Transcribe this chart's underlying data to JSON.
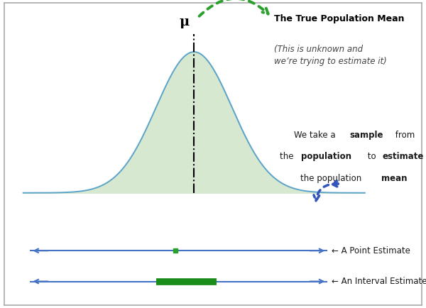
{
  "bg_color": "#ffffff",
  "border_color": "#aaaaaa",
  "bell_fill_color": "#d6e8d0",
  "bell_edge_color": "#5ba3c9",
  "bell_mean": 0.0,
  "bell_std": 1.0,
  "vline_x": 0.0,
  "mu_label": "μ",
  "title_text": "The True Population Mean",
  "subtitle_text": "(This is unknown and\nwe’re trying to estimate it)",
  "point_label": "← A Point Estimate",
  "interval_label": "← An Interval Estimate",
  "line_color": "#4472c4",
  "point_color": "#2ca02c",
  "interval_color": "#1a8c1a",
  "arrow_color_green": "#2ca02c",
  "arrow_color_blue": "#3355bb",
  "label_color": "#1a1a1a",
  "mu_color": "#000000",
  "title_color": "#000000",
  "subtitle_color": "#444444",
  "sample_label_color": "#1a1a1a"
}
